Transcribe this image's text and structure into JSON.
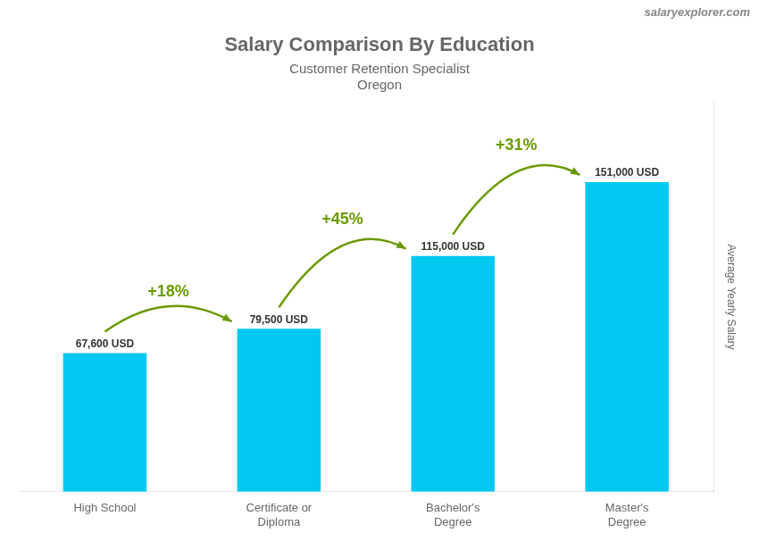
{
  "chart_data": {
    "type": "bar",
    "title": "Salary Comparison By Education",
    "subtitle": [
      "Customer Retention Specialist",
      "Oregon"
    ],
    "y_label": "Average Yearly Salary",
    "categories": [
      "High School",
      "Certificate or\nDiploma",
      "Bachelor's\nDegree",
      "Master's\nDegree"
    ],
    "values": [
      67600,
      79500,
      115000,
      151000
    ],
    "value_labels": [
      "67,600 USD",
      "79,500 USD",
      "115,000 USD",
      "151,000 USD"
    ],
    "data_labels": true,
    "color": "#00c8f0",
    "ylim": [
      0,
      190000
    ],
    "tick_labels": "x",
    "grid": false,
    "annotations": [
      {
        "text": "+18%",
        "between": [
          0,
          1
        ]
      },
      {
        "text": "+45%",
        "between": [
          1,
          2
        ]
      },
      {
        "text": "+31%",
        "between": [
          2,
          3
        ]
      },
      {
        "text": "salaryexplorer.com"
      }
    ]
  }
}
